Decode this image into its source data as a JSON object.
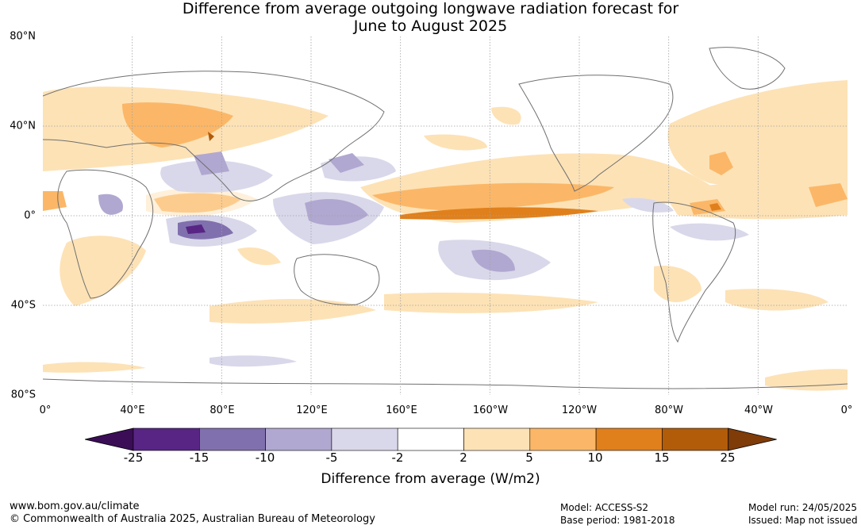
{
  "title_line1": "Difference from average outgoing longwave radiation forecast for",
  "title_line2": "June to August 2025",
  "lat_labels": [
    "80°N",
    "40°N",
    "0°",
    "40°S",
    "80°S"
  ],
  "lon_labels": [
    "0°",
    "40°E",
    "80°E",
    "120°E",
    "160°E",
    "160°W",
    "120°W",
    "80°W",
    "40°W",
    "0°"
  ],
  "colorbar": {
    "ticks": [
      "-25",
      "-15",
      "-10",
      "-5",
      "-2",
      "2",
      "5",
      "10",
      "15",
      "25"
    ],
    "colors": [
      "#3b0d57",
      "#582585",
      "#8170ae",
      "#b1a8d1",
      "#d9d8ea",
      "#ffffff",
      "#fde2b6",
      "#fbb767",
      "#e0801c",
      "#b25c0a",
      "#7f3b08"
    ],
    "label": "Difference from average (W/m2)"
  },
  "footer": {
    "url": "www.bom.gov.au/climate",
    "copyright": "© Commonwealth of Australia 2025, Australian Bureau of Meteorology",
    "model": "Model: ACCESS-S2",
    "base_period": "Base period: 1981-2018",
    "model_run": "Model run: 24/05/2025",
    "issued": "Issued: Map not issued"
  }
}
